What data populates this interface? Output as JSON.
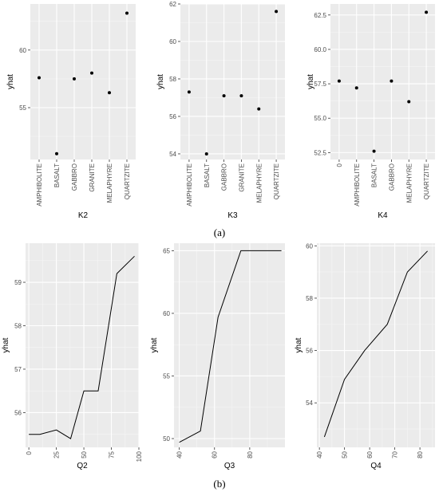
{
  "panel_labels": {
    "a": "(a)",
    "b": "(b)"
  },
  "chart_data": [
    {
      "type": "scatter",
      "xlabel": "K2",
      "ylabel": "yhat",
      "categories": [
        "AMPHIBOLITE",
        "BASALT",
        "GABBRO",
        "GRANITE",
        "MELAPHYRE",
        "QUARTZITE"
      ],
      "values": [
        57.6,
        51.0,
        57.5,
        58.0,
        56.3,
        63.2
      ],
      "ylim": [
        50.5,
        64.0
      ],
      "yticks": [
        55,
        60
      ],
      "ytick_labels": [
        "55",
        "60"
      ],
      "grid": true
    },
    {
      "type": "scatter",
      "xlabel": "K3",
      "ylabel": "yhat",
      "categories": [
        "AMPHIBOLITE",
        "BASALT",
        "GABBRO",
        "GRANITE",
        "MELAPHYRE",
        "QUARTZITE"
      ],
      "values": [
        57.3,
        54.0,
        57.1,
        57.1,
        56.4,
        61.6
      ],
      "ylim": [
        53.7,
        62.0
      ],
      "yticks": [
        54,
        56,
        58,
        60,
        62
      ],
      "ytick_labels": [
        "54",
        "56",
        "58",
        "60",
        "62"
      ],
      "grid": true
    },
    {
      "type": "scatter",
      "xlabel": "K4",
      "ylabel": "yhat",
      "categories": [
        "0",
        "AMPHIBOLITE",
        "BASALT",
        "GABBRO",
        "MELAPHYRE",
        "QUARTZITE"
      ],
      "values": [
        57.7,
        57.2,
        52.6,
        57.7,
        56.2,
        62.7
      ],
      "ylim": [
        52.0,
        63.3
      ],
      "yticks": [
        52.5,
        55.0,
        57.5,
        60.0,
        62.5
      ],
      "ytick_labels": [
        "52.5",
        "55.0",
        "57.5",
        "60.0",
        "62.5"
      ],
      "grid": true
    },
    {
      "type": "line",
      "xlabel": "Q2",
      "ylabel": "yhat",
      "x": [
        0,
        10,
        25,
        38,
        50,
        63,
        80,
        96
      ],
      "values": [
        55.5,
        55.5,
        55.6,
        55.4,
        56.5,
        56.5,
        59.2,
        59.6
      ],
      "xlim": [
        -3,
        100
      ],
      "ylim": [
        55.2,
        59.9
      ],
      "xticks": [
        0,
        25,
        50,
        75,
        100
      ],
      "xtick_labels": [
        "0",
        "25",
        "50",
        "75",
        "100"
      ],
      "yticks": [
        56,
        57,
        58,
        59
      ],
      "ytick_labels": [
        "56",
        "57",
        "58",
        "59"
      ],
      "grid": true
    },
    {
      "type": "line",
      "xlabel": "Q3",
      "ylabel": "yhat",
      "x": [
        40,
        52,
        62,
        75,
        98
      ],
      "values": [
        49.7,
        50.6,
        59.7,
        65.0,
        65.0
      ],
      "xlim": [
        37,
        100
      ],
      "ylim": [
        49.3,
        65.6
      ],
      "xticks": [
        40,
        60,
        80
      ],
      "xtick_labels": [
        "40",
        "60",
        "80"
      ],
      "yticks": [
        50,
        55,
        60,
        65
      ],
      "ytick_labels": [
        "50",
        "55",
        "60",
        "65"
      ],
      "grid": true
    },
    {
      "type": "line",
      "xlabel": "Q4",
      "ylabel": "yhat",
      "x": [
        42,
        50,
        58,
        67,
        75,
        83
      ],
      "values": [
        52.7,
        54.9,
        56.0,
        57.0,
        59.0,
        59.8
      ],
      "xlim": [
        39,
        86
      ],
      "ylim": [
        52.3,
        60.1
      ],
      "xticks": [
        40,
        50,
        60,
        70,
        80
      ],
      "xtick_labels": [
        "40",
        "50",
        "60",
        "70",
        "80"
      ],
      "yticks": [
        54,
        56,
        58,
        60
      ],
      "ytick_labels": [
        "54",
        "56",
        "58",
        "60"
      ],
      "grid": true
    }
  ]
}
